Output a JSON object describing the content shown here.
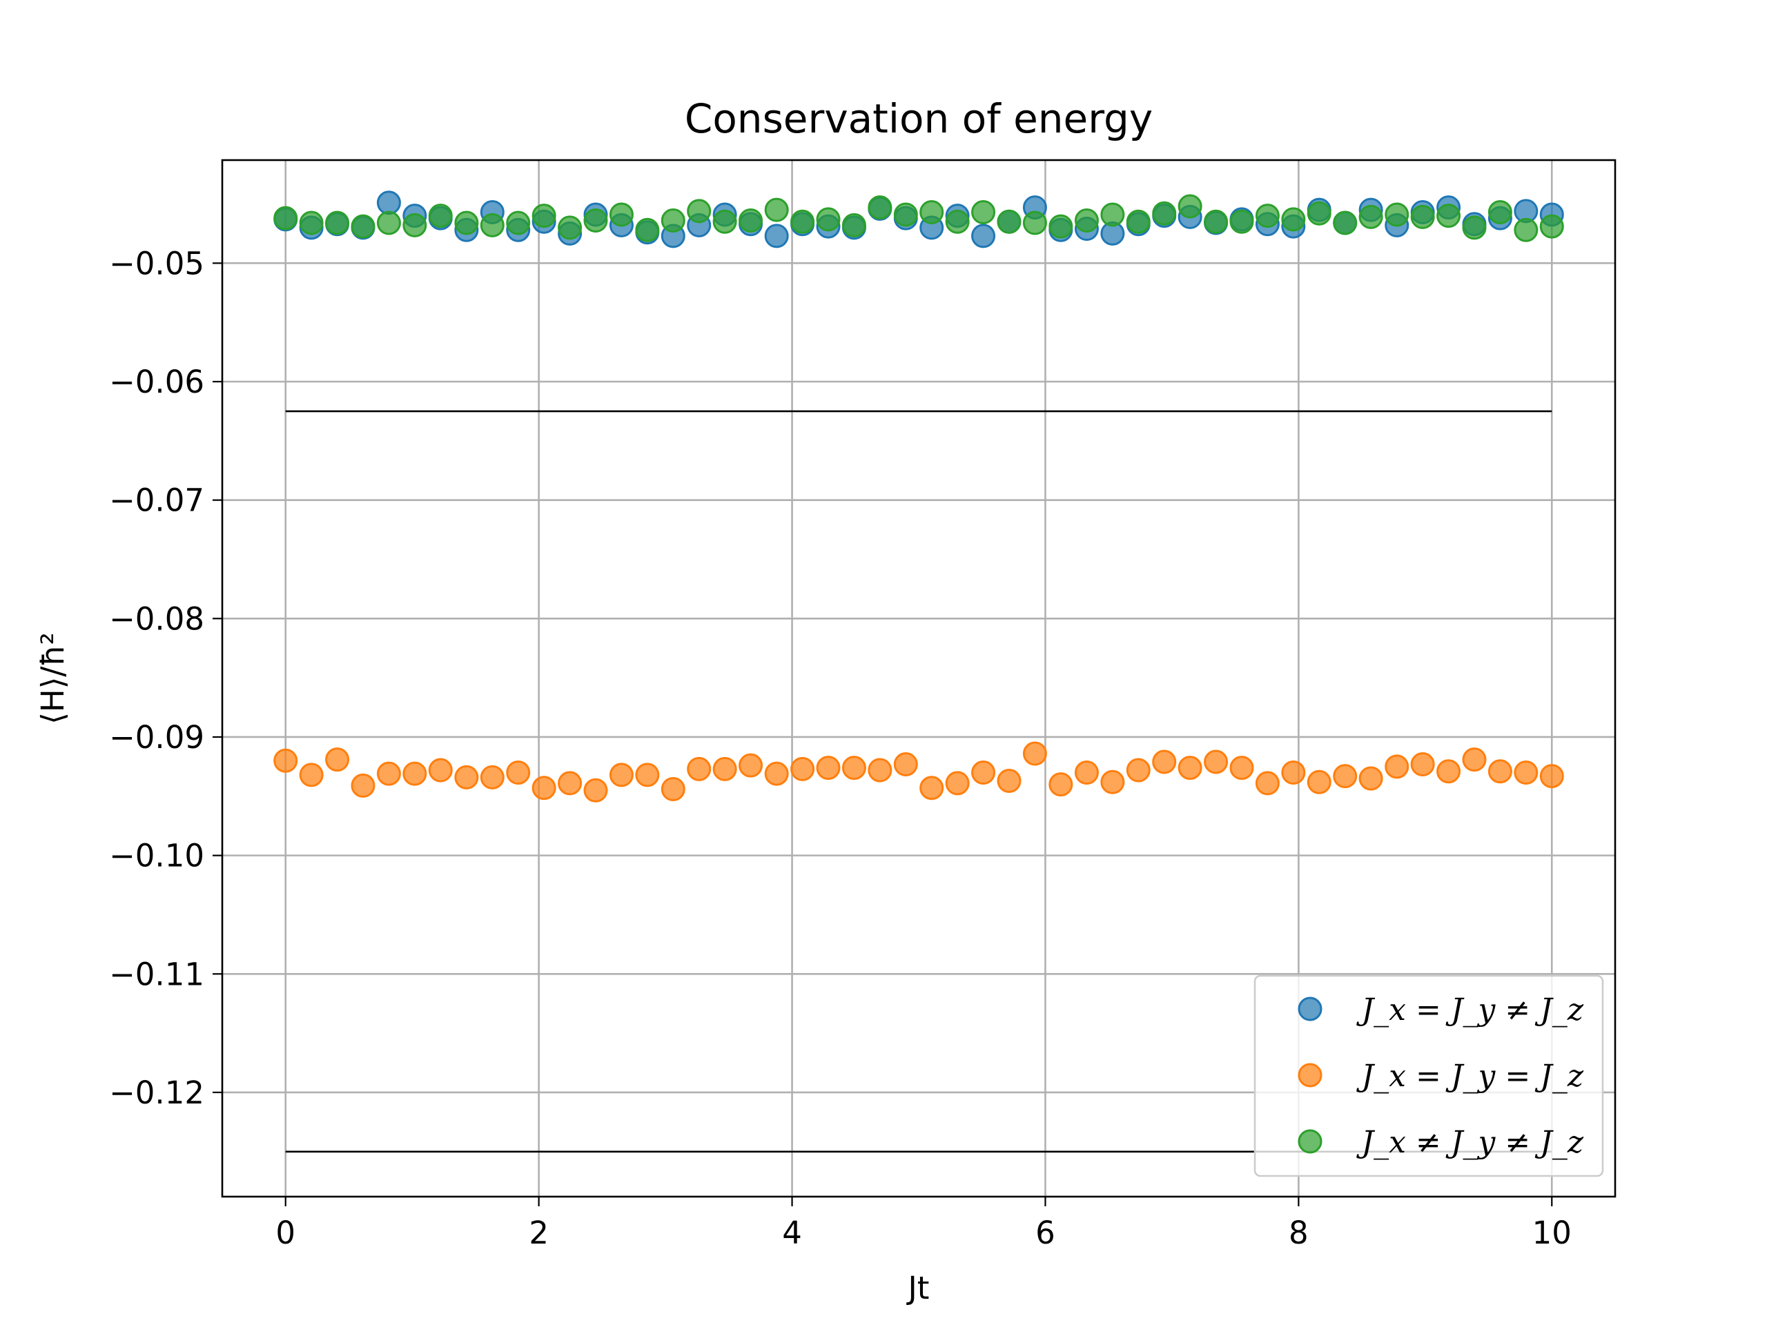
{
  "chart_data": {
    "type": "scatter",
    "title": "Conservation of energy",
    "xlabel": "Jt",
    "ylabel": "⟨H⟩/ħ²",
    "xlim": [
      -0.5,
      10.5
    ],
    "ylim": [
      -0.1288,
      -0.0413
    ],
    "xticks": [
      0,
      2,
      4,
      6,
      8,
      10
    ],
    "xtick_labels": [
      "0",
      "2",
      "4",
      "6",
      "8",
      "10"
    ],
    "yticks": [
      -0.05,
      -0.06,
      -0.07,
      -0.08,
      -0.09,
      -0.1,
      -0.11,
      -0.12
    ],
    "ytick_labels": [
      "−0.05",
      "−0.06",
      "−0.07",
      "−0.08",
      "−0.09",
      "−0.10",
      "−0.11",
      "−0.12"
    ],
    "grid": true,
    "legend_position": "lower-right",
    "x": [
      0.0,
      0.204,
      0.408,
      0.612,
      0.816,
      1.02,
      1.224,
      1.429,
      1.633,
      1.837,
      2.041,
      2.245,
      2.449,
      2.653,
      2.857,
      3.061,
      3.265,
      3.469,
      3.673,
      3.878,
      4.082,
      4.286,
      4.49,
      4.694,
      4.898,
      5.102,
      5.306,
      5.51,
      5.714,
      5.918,
      6.122,
      6.327,
      6.531,
      6.735,
      6.939,
      7.143,
      7.347,
      7.551,
      7.755,
      7.959,
      8.163,
      8.367,
      8.571,
      8.776,
      8.98,
      9.184,
      9.388,
      9.592,
      9.796,
      10.0
    ],
    "series": [
      {
        "name": "J_x = J_y ≠ J_z",
        "color": "#1f77b4",
        "values": [
          -0.0463,
          -0.047,
          -0.0467,
          -0.047,
          -0.0449,
          -0.046,
          -0.0462,
          -0.0472,
          -0.0457,
          -0.0472,
          -0.0465,
          -0.0475,
          -0.0459,
          -0.0468,
          -0.0474,
          -0.0477,
          -0.0468,
          -0.0459,
          -0.0467,
          -0.0477,
          -0.0467,
          -0.0469,
          -0.047,
          -0.0454,
          -0.0462,
          -0.047,
          -0.046,
          -0.0477,
          -0.0465,
          -0.0453,
          -0.0472,
          -0.0471,
          -0.0475,
          -0.0467,
          -0.046,
          -0.0461,
          -0.0466,
          -0.0463,
          -0.0467,
          -0.0469,
          -0.0455,
          -0.0466,
          -0.0455,
          -0.0468,
          -0.0457,
          -0.0453,
          -0.0467,
          -0.0462,
          -0.0456,
          -0.0459
        ]
      },
      {
        "name": "J_x = J_y = J_z",
        "color": "#ff7f0e",
        "values": [
          -0.092,
          -0.0932,
          -0.0919,
          -0.0941,
          -0.0931,
          -0.0931,
          -0.0928,
          -0.0934,
          -0.0934,
          -0.093,
          -0.0943,
          -0.0939,
          -0.0945,
          -0.0932,
          -0.0932,
          -0.0944,
          -0.0927,
          -0.0927,
          -0.0924,
          -0.0931,
          -0.0927,
          -0.0926,
          -0.0926,
          -0.0928,
          -0.0923,
          -0.0943,
          -0.0939,
          -0.093,
          -0.0937,
          -0.0914,
          -0.094,
          -0.093,
          -0.0938,
          -0.0928,
          -0.0921,
          -0.0926,
          -0.0921,
          -0.0926,
          -0.0939,
          -0.093,
          -0.0938,
          -0.0933,
          -0.0935,
          -0.0925,
          -0.0923,
          -0.0929,
          -0.0919,
          -0.0929,
          -0.093,
          -0.0933
        ]
      },
      {
        "name": "J_x ≠ J_y ≠ J_z",
        "color": "#2ca02c",
        "values": [
          -0.0462,
          -0.0466,
          -0.0466,
          -0.0469,
          -0.0466,
          -0.0468,
          -0.046,
          -0.0466,
          -0.0468,
          -0.0466,
          -0.046,
          -0.047,
          -0.0464,
          -0.0459,
          -0.0472,
          -0.0464,
          -0.0456,
          -0.0465,
          -0.0464,
          -0.0455,
          -0.0465,
          -0.0463,
          -0.0468,
          -0.0453,
          -0.0459,
          -0.0457,
          -0.0465,
          -0.0457,
          -0.0465,
          -0.0466,
          -0.0469,
          -0.0464,
          -0.0459,
          -0.0465,
          -0.0458,
          -0.0452,
          -0.0465,
          -0.0465,
          -0.046,
          -0.0463,
          -0.0458,
          -0.0466,
          -0.0461,
          -0.0459,
          -0.0461,
          -0.046,
          -0.047,
          -0.0457,
          -0.0472,
          -0.0469
        ]
      }
    ],
    "reference_lines": [
      -0.0625,
      -0.125
    ]
  }
}
